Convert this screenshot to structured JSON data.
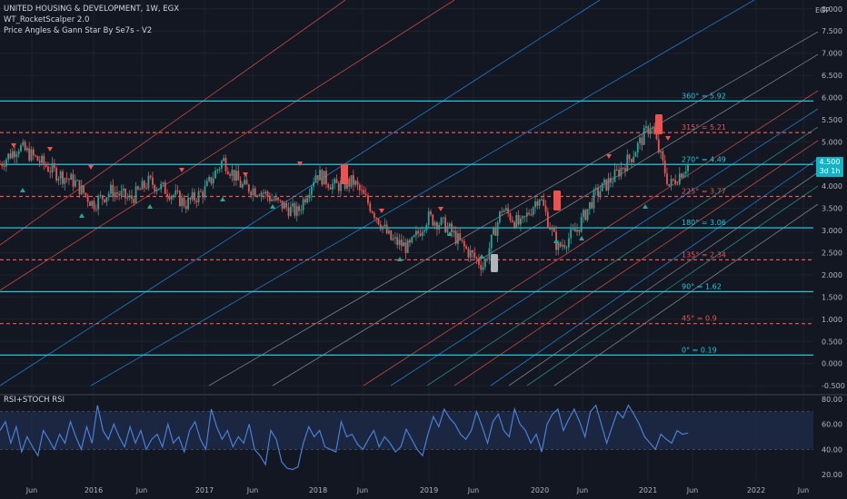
{
  "legend": {
    "symbol": "UNITED HOUSING & DEVELOPMENT, 1W, EGX",
    "indicator1": "WT_RocketScalper 2.0",
    "indicator2": "Price Angles & Gann Star By Se7s - V2"
  },
  "currency": "EGP",
  "price_badge": {
    "price": "4.500",
    "countdown": "3d 1h"
  },
  "rsi_pane_title": "RSI+STOCH RSI",
  "colors": {
    "background": "#131722",
    "cyan": "#26c6da",
    "red": "#ef5350",
    "blue": "#2196f3",
    "rsi": "#4a7fd6",
    "up": "#26a69a",
    "down": "#ef5350"
  },
  "chart_data": [
    {
      "type": "candlestick",
      "title": "UNITED HOUSING & DEVELOPMENT, 1W, EGX",
      "y_axis": {
        "ticks": [
          "8.000",
          "7.500",
          "7.000",
          "6.500",
          "6.000",
          "5.500",
          "5.000",
          "4.500",
          "4.000",
          "3.500",
          "3.000",
          "2.500",
          "2.000",
          "1.500",
          "1.000",
          "0.500",
          "0.000",
          "-0.500"
        ],
        "ylim": [
          -0.6,
          8.2
        ]
      },
      "x_axis": {
        "ticks": [
          "Jun",
          "2016",
          "Jun",
          "2017",
          "Jun",
          "2018",
          "Jun",
          "2019",
          "Jun",
          "2020",
          "Jun",
          "2021",
          "Jun",
          "2022",
          "Jun"
        ]
      },
      "close_series": {
        "dates": [
          "2015-03",
          "2015-05",
          "2015-07",
          "2015-09",
          "2015-11",
          "2016-01",
          "2016-03",
          "2016-05",
          "2016-07",
          "2016-09",
          "2016-11",
          "2017-01",
          "2017-03",
          "2017-05",
          "2017-07",
          "2017-09",
          "2017-11",
          "2018-01",
          "2018-03",
          "2018-05",
          "2018-07",
          "2018-09",
          "2018-11",
          "2019-01",
          "2019-03",
          "2019-05",
          "2019-07",
          "2019-09",
          "2019-11",
          "2020-01",
          "2020-03",
          "2020-05",
          "2020-07",
          "2020-09",
          "2020-11",
          "2021-01",
          "2021-03",
          "2021-04"
        ],
        "values": [
          4.5,
          4.9,
          4.6,
          4.3,
          4.1,
          3.6,
          3.9,
          3.7,
          4.1,
          3.9,
          3.6,
          3.9,
          4.6,
          4.0,
          3.9,
          3.6,
          3.4,
          4.3,
          4.0,
          4.1,
          3.5,
          2.8,
          2.6,
          3.3,
          3.1,
          2.6,
          2.2,
          3.5,
          3.1,
          3.8,
          2.6,
          3.0,
          3.8,
          4.2,
          4.7,
          5.4,
          4.0,
          4.5
        ]
      },
      "horizontal_levels": [
        {
          "label": "360° = 5.92",
          "value": 5.92,
          "style": "solid-cyan"
        },
        {
          "label": "315° = 5.21",
          "value": 5.21,
          "style": "dashed-red"
        },
        {
          "label": "270° = 4.49",
          "value": 4.49,
          "style": "solid-cyan"
        },
        {
          "label": "225° = 3.77",
          "value": 3.77,
          "style": "dashed-red"
        },
        {
          "label": "180° = 3.06",
          "value": 3.06,
          "style": "solid-cyan"
        },
        {
          "label": "135° = 2.34",
          "value": 2.34,
          "style": "dashed-red"
        },
        {
          "label": "90° = 1.62",
          "value": 1.62,
          "style": "solid-cyan"
        },
        {
          "label": "45° = 0.9",
          "value": 0.9,
          "style": "dashed-red"
        },
        {
          "label": "0° = 0.19",
          "value": 0.19,
          "style": "solid-cyan"
        }
      ]
    },
    {
      "type": "line",
      "title": "RSI+STOCH RSI",
      "y_axis": {
        "ticks": [
          "80.00",
          "60.00",
          "40.00",
          "20.00"
        ],
        "ylim": [
          15,
          82
        ]
      },
      "band": [
        40,
        70
      ],
      "values": [
        55,
        62,
        45,
        58,
        38,
        50,
        42,
        35,
        55,
        48,
        40,
        52,
        45,
        62,
        50,
        40,
        58,
        45,
        75,
        55,
        48,
        60,
        50,
        42,
        58,
        45,
        55,
        40,
        48,
        52,
        42,
        60,
        45,
        50,
        38,
        55,
        62,
        48,
        40,
        72,
        58,
        48,
        55,
        42,
        50,
        45,
        60,
        40,
        35,
        28,
        55,
        48,
        30,
        25,
        24,
        26,
        45,
        58,
        50,
        55,
        42,
        40,
        38,
        62,
        50,
        52,
        44,
        40,
        48,
        55,
        42,
        50,
        45,
        38,
        42,
        56,
        48,
        40,
        35,
        52,
        66,
        58,
        72,
        65,
        60,
        52,
        48,
        55,
        70,
        58,
        45,
        62,
        68,
        55,
        50,
        72,
        60,
        55,
        45,
        52,
        38,
        60,
        68,
        72,
        55,
        64,
        72,
        62,
        50,
        70,
        75,
        60,
        45,
        58,
        70,
        65,
        75,
        68,
        60,
        50,
        45,
        40,
        52,
        48,
        45,
        55,
        52,
        53
      ]
    }
  ]
}
